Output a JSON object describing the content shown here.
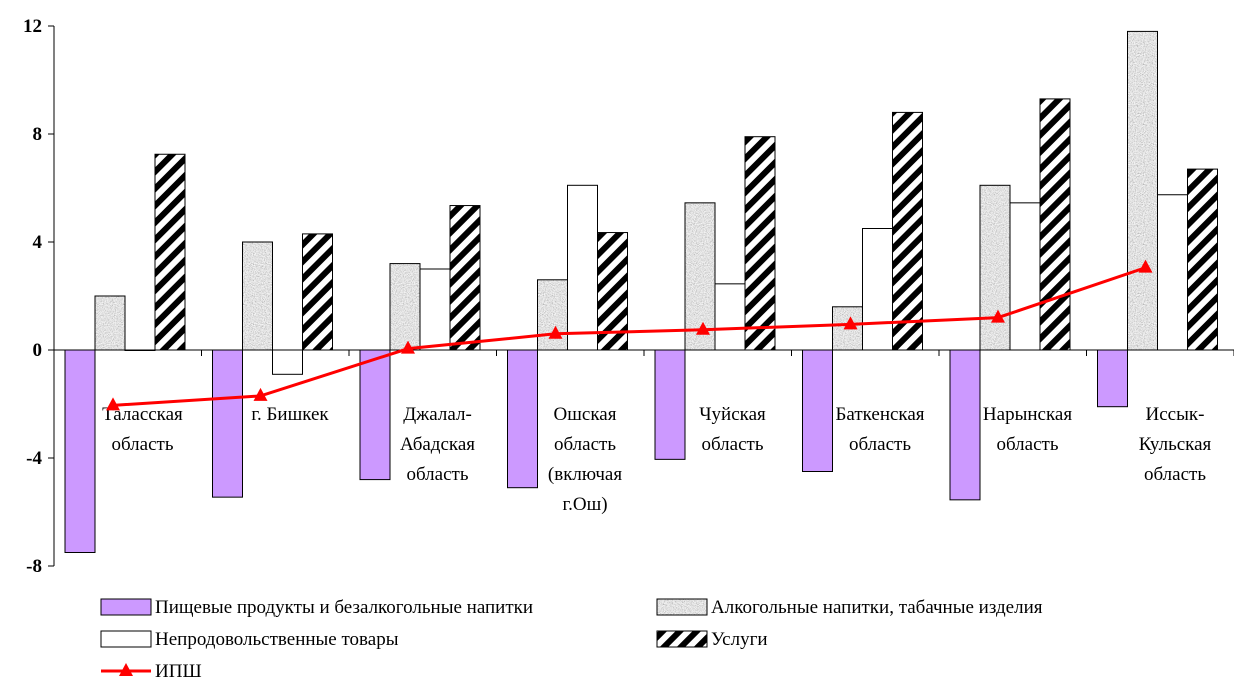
{
  "chart_data": {
    "type": "bar",
    "categories": [
      [
        "Таласская",
        "область"
      ],
      [
        "г. Бишкек"
      ],
      [
        "Джалал-",
        "Абадская",
        "область"
      ],
      [
        "Ошская",
        "область",
        "(включая",
        "г.Ош)"
      ],
      [
        "Чуйская",
        "область"
      ],
      [
        "Баткенская",
        "область"
      ],
      [
        "Нарынская",
        "область"
      ],
      [
        "Иссык-",
        "Кульская",
        "область"
      ]
    ],
    "series": [
      {
        "name": "Пищевые продукты и безалкогольные напитки",
        "values": [
          -7.5,
          -5.45,
          -4.8,
          -5.1,
          -4.05,
          -4.5,
          -5.55,
          -2.1
        ],
        "color": "#cc99ff",
        "pattern": "solid"
      },
      {
        "name": "Алкогольные напитки, табачные изделия",
        "values": [
          2.0,
          4.0,
          3.2,
          2.6,
          5.45,
          1.6,
          6.1,
          11.8
        ],
        "color": "#b0b0b0",
        "pattern": "granite"
      },
      {
        "name": "Непродовольственные товары",
        "values": [
          0,
          -0.9,
          3.0,
          6.1,
          2.45,
          4.5,
          5.45,
          5.75
        ],
        "color": "#ffffff",
        "pattern": "solid"
      },
      {
        "name": "Услуги",
        "values": [
          7.25,
          4.3,
          5.35,
          4.35,
          7.9,
          8.8,
          9.3,
          6.7
        ],
        "color": "#000000",
        "pattern": "diagonal-stripes"
      }
    ],
    "line_series": {
      "name": "ИПШ",
      "values": [
        -2.05,
        -1.7,
        0.05,
        0.6,
        0.75,
        0.95,
        1.2,
        3.05
      ],
      "color": "#ff0000",
      "marker": "triangle"
    },
    "ylim": [
      -8,
      12
    ],
    "yticks": [
      "12",
      "8",
      "4",
      "0",
      "-4",
      "-8"
    ],
    "legend_position": "bottom",
    "grid": false
  }
}
